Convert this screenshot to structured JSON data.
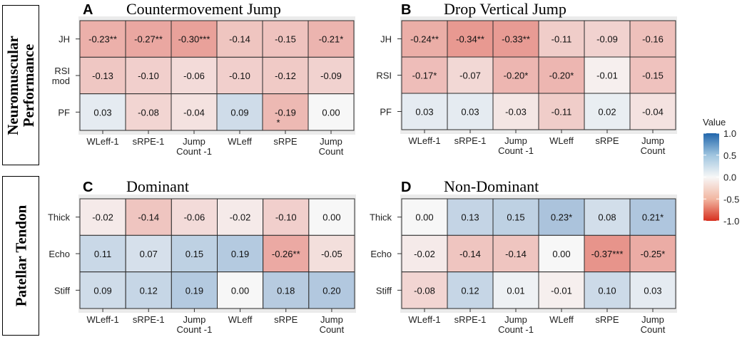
{
  "side_labels": {
    "top": [
      "Neuromuscular",
      "Performance"
    ],
    "bottom": "Patellar Tendon"
  },
  "legend": {
    "title": "Value",
    "ticks": [
      "1.0",
      "0.5",
      "0.0",
      "-0.5",
      "-1.0"
    ],
    "colors": {
      "high": "#2166ac",
      "mid": "#f7f7f7",
      "low": "#d7301f"
    }
  },
  "chart_data": [
    {
      "type": "heatmap",
      "letter": "A",
      "title": "Countermovement Jump",
      "rows": [
        "JH",
        "RSI mod",
        "PF"
      ],
      "columns": [
        "WLeff-1",
        "sRPE-1",
        "Jump Count -1",
        "WLeff",
        "sRPE",
        "Jump Count"
      ],
      "values": [
        [
          -0.23,
          -0.27,
          -0.3,
          -0.14,
          -0.15,
          -0.21
        ],
        [
          -0.13,
          -0.1,
          -0.06,
          -0.1,
          -0.12,
          -0.09
        ],
        [
          0.03,
          -0.08,
          -0.04,
          0.09,
          -0.19,
          0.0
        ]
      ],
      "labels": [
        [
          "-0.23**",
          "-0.27**",
          "-0.30***",
          "-0.14",
          "-0.15",
          "-0.21*"
        ],
        [
          "-0.13",
          "-0.10",
          "-0.06",
          "-0.10",
          "-0.12",
          "-0.09"
        ],
        [
          "0.03",
          "-0.08",
          "-0.04",
          "0.09",
          "-0.19 *",
          "0.00"
        ]
      ]
    },
    {
      "type": "heatmap",
      "letter": "B",
      "title": "Drop Vertical Jump",
      "rows": [
        "JH",
        "RSI",
        "PF"
      ],
      "columns": [
        "WLeff-1",
        "sRPE-1",
        "Jump Count -1",
        "WLeff",
        "sRPE",
        "Jump Count"
      ],
      "values": [
        [
          -0.24,
          -0.34,
          -0.33,
          -0.11,
          -0.09,
          -0.16
        ],
        [
          -0.17,
          -0.07,
          -0.2,
          -0.2,
          -0.01,
          -0.15
        ],
        [
          0.03,
          0.03,
          -0.03,
          -0.11,
          0.02,
          -0.04
        ]
      ],
      "labels": [
        [
          "-0.24**",
          "-0.34**",
          "-0.33**",
          "-0.11",
          "-0.09",
          "-0.16"
        ],
        [
          "-0.17*",
          "-0.07",
          "-0.20*",
          "-0.20*",
          "-0.01",
          "-0.15"
        ],
        [
          "0.03",
          "0.03",
          "-0.03",
          "-0.11",
          "0.02",
          "-0.04"
        ]
      ]
    },
    {
      "type": "heatmap",
      "letter": "C",
      "title": "Dominant",
      "rows": [
        "Thick",
        "Echo",
        "Stiff"
      ],
      "columns": [
        "WLeff-1",
        "sRPE-1",
        "Jump Count -1",
        "WLeff",
        "sRPE",
        "Jump Count"
      ],
      "values": [
        [
          -0.02,
          -0.14,
          -0.06,
          -0.02,
          -0.1,
          0.0
        ],
        [
          0.11,
          0.07,
          0.15,
          0.19,
          -0.26,
          -0.05
        ],
        [
          0.09,
          0.12,
          0.19,
          0.0,
          0.18,
          0.2
        ]
      ],
      "labels": [
        [
          "-0.02",
          "-0.14",
          "-0.06",
          "-0.02",
          "-0.10",
          "0.00"
        ],
        [
          "0.11",
          "0.07",
          "0.15",
          "0.19",
          "-0.26**",
          "-0.05"
        ],
        [
          "0.09",
          "0.12",
          "0.19",
          "0.00",
          "0.18",
          "0.20"
        ]
      ]
    },
    {
      "type": "heatmap",
      "letter": "D",
      "title": "Non-Dominant",
      "rows": [
        "Thick",
        "Echo",
        "Stiff"
      ],
      "columns": [
        "WLeff-1",
        "sRPE-1",
        "Jump Count -1",
        "WLeff",
        "sRPE",
        "Jump Count"
      ],
      "values": [
        [
          0.0,
          0.13,
          0.15,
          0.23,
          0.08,
          0.21
        ],
        [
          -0.02,
          -0.14,
          -0.14,
          0.0,
          -0.37,
          -0.25
        ],
        [
          -0.08,
          0.12,
          0.01,
          -0.01,
          0.1,
          0.03
        ]
      ],
      "labels": [
        [
          "0.00",
          "0.13",
          "0.15",
          "0.23*",
          "0.08",
          "0.21*"
        ],
        [
          "-0.02",
          "-0.14",
          "-0.14",
          "0.00",
          "-0.37***",
          "-0.25*"
        ],
        [
          "-0.08",
          "0.12",
          "0.01",
          "-0.01",
          "0.10",
          "0.03"
        ]
      ]
    }
  ]
}
